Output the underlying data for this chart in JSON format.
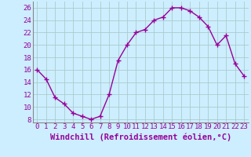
{
  "x": [
    0,
    1,
    2,
    3,
    4,
    5,
    6,
    7,
    8,
    9,
    10,
    11,
    12,
    13,
    14,
    15,
    16,
    17,
    18,
    19,
    20,
    21,
    22,
    23
  ],
  "y": [
    16,
    14.5,
    11.5,
    10.5,
    9,
    8.5,
    8,
    8.5,
    12,
    17.5,
    20,
    22,
    22.5,
    24,
    24.5,
    26,
    26,
    25.5,
    24.5,
    23,
    20,
    21.5,
    17,
    15
  ],
  "line_color": "#990099",
  "marker": "+",
  "marker_size": 4,
  "marker_lw": 1.0,
  "bg_color": "#cceeff",
  "grid_color": "#aacccc",
  "xlabel": "Windchill (Refroidissement éolien,°C)",
  "xlabel_fontsize": 7.5,
  "tick_fontsize": 6.5,
  "xlim": [
    -0.5,
    23.5
  ],
  "ylim": [
    7.5,
    27
  ],
  "yticks": [
    8,
    10,
    12,
    14,
    16,
    18,
    20,
    22,
    24,
    26
  ],
  "xticks": [
    0,
    1,
    2,
    3,
    4,
    5,
    6,
    7,
    8,
    9,
    10,
    11,
    12,
    13,
    14,
    15,
    16,
    17,
    18,
    19,
    20,
    21,
    22,
    23
  ]
}
